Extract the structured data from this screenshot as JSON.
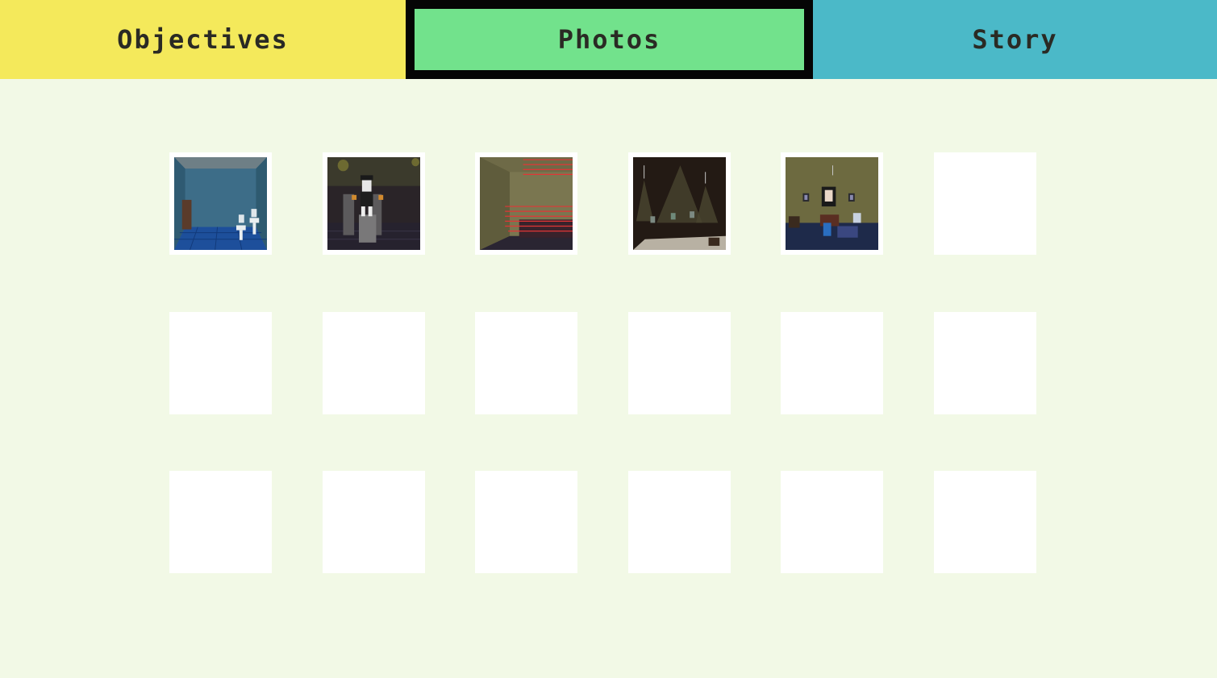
{
  "tabs": {
    "objectives": {
      "label": "Objectives",
      "color": "#f4e95b"
    },
    "photos": {
      "label": "Photos",
      "color": "#72e28c",
      "selected": true
    },
    "story": {
      "label": "Story",
      "color": "#4bb9c8"
    }
  },
  "album": {
    "columns": 6,
    "rows": 3,
    "photos": [
      {
        "scene": "bathroom",
        "icon": "bathroom-photo"
      },
      {
        "scene": "stage-animatronic",
        "icon": "stage-photo"
      },
      {
        "scene": "laser-hallway",
        "icon": "laser-hallway-photo"
      },
      {
        "scene": "dark-gallery-room",
        "icon": "gallery-photo"
      },
      {
        "scene": "bedroom",
        "icon": "bedroom-photo"
      }
    ],
    "total_slots": 18
  }
}
